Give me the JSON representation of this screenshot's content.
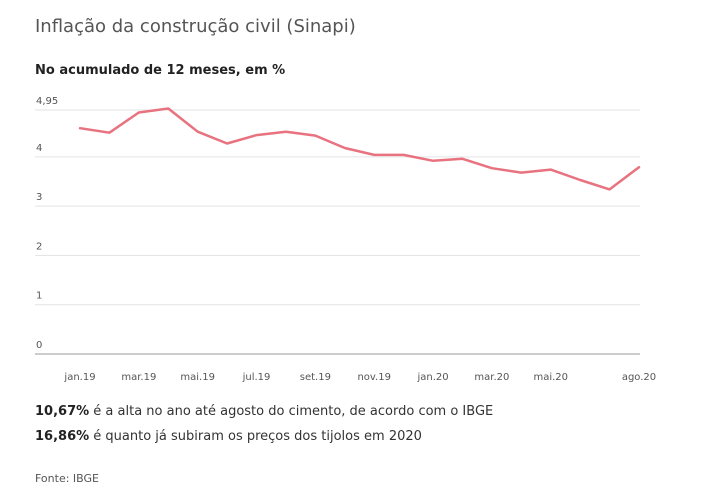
{
  "header": {
    "title": "Inflação da construção civil (Sinapi)",
    "subtitle": "No acumulado de 12 meses, em %"
  },
  "chart_data": {
    "type": "line",
    "ylim": [
      0,
      4.95
    ],
    "yticks": [
      "0",
      "1",
      "2",
      "3",
      "4",
      "4,95"
    ],
    "ytick_values": [
      0,
      1,
      2,
      3,
      4,
      4.95
    ],
    "xtick_labels": [
      "jan.19",
      "mar.19",
      "mai.19",
      "jul.19",
      "set.19",
      "nov.19",
      "jan.20",
      "mar.20",
      "mai.20",
      "ago.20"
    ],
    "xtick_index": [
      0,
      2,
      4,
      6,
      8,
      10,
      12,
      14,
      16,
      19
    ],
    "grid": true,
    "color": "#e8727f",
    "series": [
      {
        "values": [
          4.58,
          4.49,
          4.9,
          4.98,
          4.51,
          4.27,
          4.44,
          4.51,
          4.43,
          4.18,
          4.04,
          4.04,
          3.92,
          3.96,
          3.77,
          3.68,
          3.74,
          3.53,
          3.34,
          3.79
        ]
      }
    ]
  },
  "notes": [
    {
      "value": "10,67%",
      "text": " é a alta no ano até agosto do cimento, de acordo com o IBGE"
    },
    {
      "value": "16,86%",
      "text": " é quanto já subiram os preços dos tijolos em 2020"
    }
  ],
  "source": "Fonte: IBGE"
}
